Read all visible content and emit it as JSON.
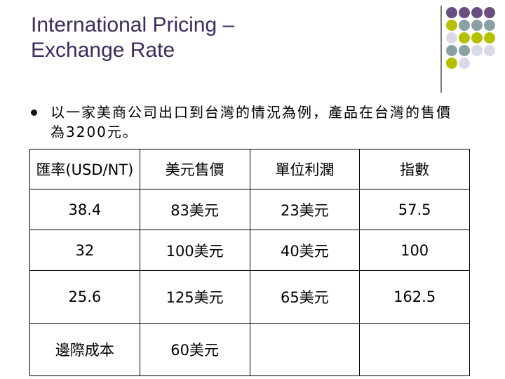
{
  "title": {
    "line1": "International Pricing –",
    "line2": "Exchange Rate"
  },
  "decor": {
    "dot_colors": [
      "#6b4f80",
      "#6b4f80",
      "#6b4f80",
      "#6b4f80",
      "#b5c100",
      "#8aa1a4",
      "#8aa1a4",
      "#8aa1a4",
      "#d9d9ea",
      "#b5c100",
      "#b5c100",
      "#b5c100",
      "#8aa1a4",
      "#8aa1a4",
      "#d9d9ea",
      "#d9d9ea",
      "#b5c100",
      "#d9d9ea"
    ]
  },
  "bullet": {
    "text": "以一家美商公司出口到台灣的情況為例，產品在台灣的售價為3200元。"
  },
  "table": {
    "headers": [
      "匯率(USD/NT)",
      "美元售價",
      "單位利潤",
      "指數"
    ],
    "rows": [
      [
        "38.4",
        "83美元",
        "23美元",
        "57.5"
      ],
      [
        "32",
        "100美元",
        "40美元",
        "100"
      ],
      [
        "25.6",
        "125美元",
        "65美元",
        "162.5"
      ],
      [
        "邊際成本",
        "60美元",
        "",
        ""
      ]
    ]
  }
}
